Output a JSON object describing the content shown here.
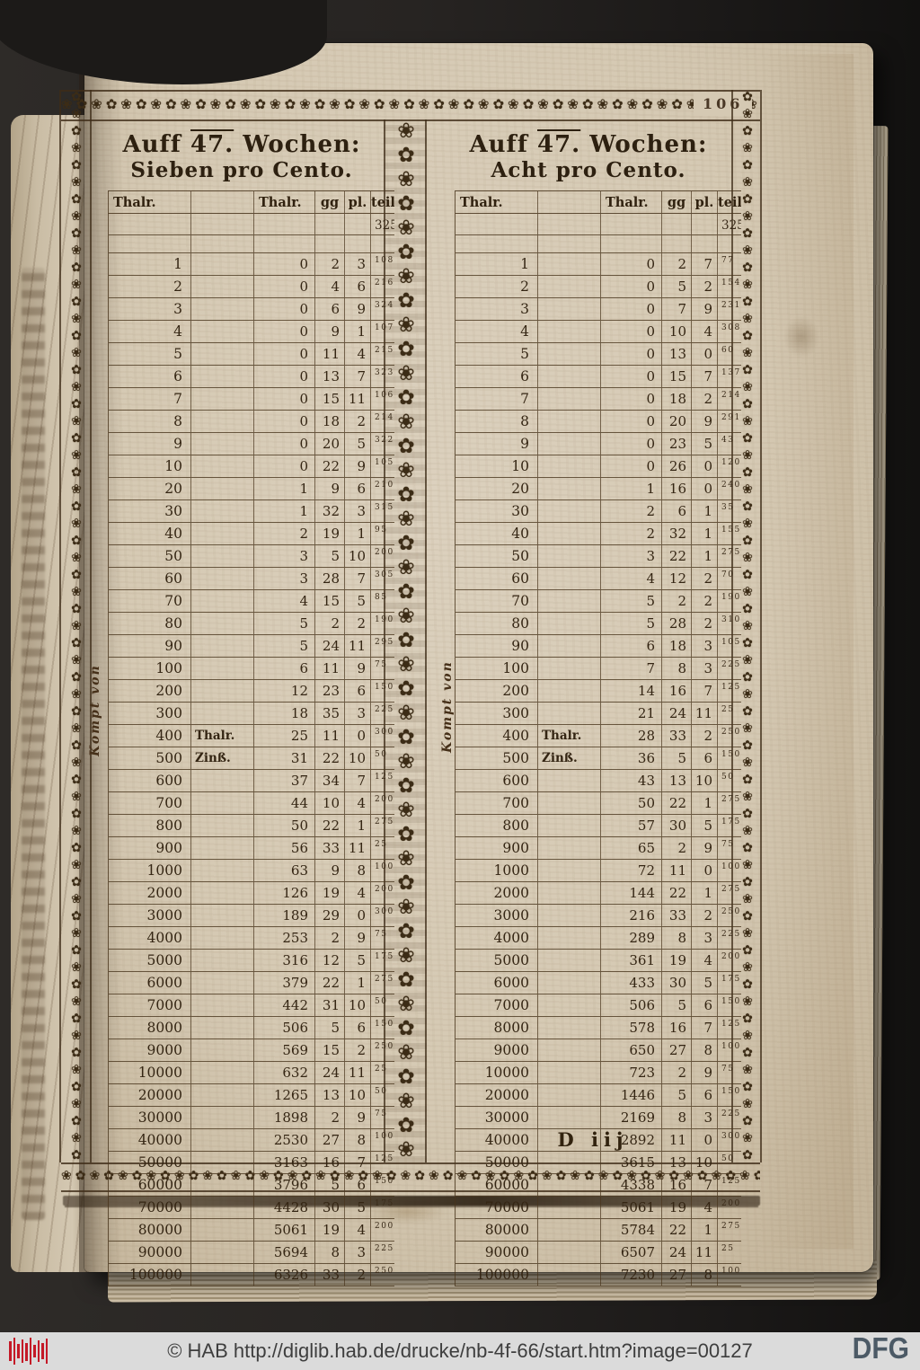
{
  "page": {
    "number": "106",
    "signature": "D iij",
    "kompt_von": "Kompt von"
  },
  "ornaments": {
    "flower_row": "❀✿",
    "flower_column": "✿❀",
    "flower_center": "❀✿"
  },
  "colors": {
    "parchment": "#d5c9b3",
    "ink": "#342513",
    "footer_bg": "#dbdbdb",
    "hab_red": "#c41927",
    "dfg_blue": "#4c5a66"
  },
  "footer": {
    "text": "© HAB http://diglib.hab.de/drucke/nb-4f-66/start.htm?image=00127",
    "dfg_label": "DFG"
  },
  "tables": [
    {
      "title": {
        "pre": "Auff",
        "num": "47.",
        "post": "Wochen:",
        "line2": "Sieben pro Cento."
      },
      "headers": [
        "Thalr.",
        "",
        "Thalr.",
        "gg",
        "pl.",
        "teil."
      ],
      "denominator": "325",
      "rows": [
        [
          "1",
          "",
          "0",
          "2",
          "3",
          "108"
        ],
        [
          "2",
          "",
          "0",
          "4",
          "6",
          "216"
        ],
        [
          "3",
          "",
          "0",
          "6",
          "9",
          "324"
        ],
        [
          "4",
          "",
          "0",
          "9",
          "1",
          "107"
        ],
        [
          "5",
          "",
          "0",
          "11",
          "4",
          "215"
        ],
        [
          "6",
          "",
          "0",
          "13",
          "7",
          "323"
        ],
        [
          "7",
          "",
          "0",
          "15",
          "11",
          "106"
        ],
        [
          "8",
          "",
          "0",
          "18",
          "2",
          "214"
        ],
        [
          "9",
          "",
          "0",
          "20",
          "5",
          "322"
        ],
        [
          "10",
          "",
          "0",
          "22",
          "9",
          "105"
        ],
        [
          "20",
          "",
          "1",
          "9",
          "6",
          "210"
        ],
        [
          "30",
          "",
          "1",
          "32",
          "3",
          "315"
        ],
        [
          "40",
          "",
          "2",
          "19",
          "1",
          "95"
        ],
        [
          "50",
          "",
          "3",
          "5",
          "10",
          "200"
        ],
        [
          "60",
          "",
          "3",
          "28",
          "7",
          "305"
        ],
        [
          "70",
          "",
          "4",
          "15",
          "5",
          "85"
        ],
        [
          "80",
          "",
          "5",
          "2",
          "2",
          "190"
        ],
        [
          "90",
          "",
          "5",
          "24",
          "11",
          "295"
        ],
        [
          "100",
          "",
          "6",
          "11",
          "9",
          "75"
        ],
        [
          "200",
          "",
          "12",
          "23",
          "6",
          "150"
        ],
        [
          "300",
          "",
          "18",
          "35",
          "3",
          "225"
        ],
        [
          "400",
          "Thalr.",
          "25",
          "11",
          "0",
          "300"
        ],
        [
          "500",
          "Zinß.",
          "31",
          "22",
          "10",
          "50"
        ],
        [
          "600",
          "",
          "37",
          "34",
          "7",
          "125"
        ],
        [
          "700",
          "",
          "44",
          "10",
          "4",
          "200"
        ],
        [
          "800",
          "",
          "50",
          "22",
          "1",
          "275"
        ],
        [
          "900",
          "",
          "56",
          "33",
          "11",
          "25"
        ],
        [
          "1000",
          "",
          "63",
          "9",
          "8",
          "100"
        ],
        [
          "2000",
          "",
          "126",
          "19",
          "4",
          "200"
        ],
        [
          "3000",
          "",
          "189",
          "29",
          "0",
          "300"
        ],
        [
          "4000",
          "",
          "253",
          "2",
          "9",
          "75"
        ],
        [
          "5000",
          "",
          "316",
          "12",
          "5",
          "175"
        ],
        [
          "6000",
          "",
          "379",
          "22",
          "1",
          "275"
        ],
        [
          "7000",
          "",
          "442",
          "31",
          "10",
          "50"
        ],
        [
          "8000",
          "",
          "506",
          "5",
          "6",
          "150"
        ],
        [
          "9000",
          "",
          "569",
          "15",
          "2",
          "250"
        ],
        [
          "10000",
          "",
          "632",
          "24",
          "11",
          "25"
        ],
        [
          "20000",
          "",
          "1265",
          "13",
          "10",
          "50"
        ],
        [
          "30000",
          "",
          "1898",
          "2",
          "9",
          "75"
        ],
        [
          "40000",
          "",
          "2530",
          "27",
          "8",
          "100"
        ],
        [
          "50000",
          "",
          "3163",
          "16",
          "7",
          "125"
        ],
        [
          "60000",
          "",
          "3796",
          "5",
          "6",
          "150"
        ],
        [
          "70000",
          "",
          "4428",
          "30",
          "5",
          "175"
        ],
        [
          "80000",
          "",
          "5061",
          "19",
          "4",
          "200"
        ],
        [
          "90000",
          "",
          "5694",
          "8",
          "3",
          "225"
        ],
        [
          "100000",
          "",
          "6326",
          "33",
          "2",
          "250"
        ]
      ]
    },
    {
      "title": {
        "pre": "Auff",
        "num": "47.",
        "post": "Wochen:",
        "line2": "Acht pro Cento."
      },
      "headers": [
        "Thalr.",
        "",
        "Thalr.",
        "gg",
        "pl.",
        "teil."
      ],
      "denominator": "325",
      "rows": [
        [
          "1",
          "",
          "0",
          "2",
          "7",
          "77"
        ],
        [
          "2",
          "",
          "0",
          "5",
          "2",
          "154"
        ],
        [
          "3",
          "",
          "0",
          "7",
          "9",
          "231"
        ],
        [
          "4",
          "",
          "0",
          "10",
          "4",
          "308"
        ],
        [
          "5",
          "",
          "0",
          "13",
          "0",
          "60"
        ],
        [
          "6",
          "",
          "0",
          "15",
          "7",
          "137"
        ],
        [
          "7",
          "",
          "0",
          "18",
          "2",
          "214"
        ],
        [
          "8",
          "",
          "0",
          "20",
          "9",
          "291"
        ],
        [
          "9",
          "",
          "0",
          "23",
          "5",
          "43"
        ],
        [
          "10",
          "",
          "0",
          "26",
          "0",
          "120"
        ],
        [
          "20",
          "",
          "1",
          "16",
          "0",
          "240"
        ],
        [
          "30",
          "",
          "2",
          "6",
          "1",
          "35"
        ],
        [
          "40",
          "",
          "2",
          "32",
          "1",
          "155"
        ],
        [
          "50",
          "",
          "3",
          "22",
          "1",
          "275"
        ],
        [
          "60",
          "",
          "4",
          "12",
          "2",
          "70"
        ],
        [
          "70",
          "",
          "5",
          "2",
          "2",
          "190"
        ],
        [
          "80",
          "",
          "5",
          "28",
          "2",
          "310"
        ],
        [
          "90",
          "",
          "6",
          "18",
          "3",
          "105"
        ],
        [
          "100",
          "",
          "7",
          "8",
          "3",
          "225"
        ],
        [
          "200",
          "",
          "14",
          "16",
          "7",
          "125"
        ],
        [
          "300",
          "",
          "21",
          "24",
          "11",
          "25"
        ],
        [
          "400",
          "Thalr.",
          "28",
          "33",
          "2",
          "250"
        ],
        [
          "500",
          "Zinß.",
          "36",
          "5",
          "6",
          "150"
        ],
        [
          "600",
          "",
          "43",
          "13",
          "10",
          "50"
        ],
        [
          "700",
          "",
          "50",
          "22",
          "1",
          "275"
        ],
        [
          "800",
          "",
          "57",
          "30",
          "5",
          "175"
        ],
        [
          "900",
          "",
          "65",
          "2",
          "9",
          "75"
        ],
        [
          "1000",
          "",
          "72",
          "11",
          "0",
          "100"
        ],
        [
          "2000",
          "",
          "144",
          "22",
          "1",
          "275"
        ],
        [
          "3000",
          "",
          "216",
          "33",
          "2",
          "250"
        ],
        [
          "4000",
          "",
          "289",
          "8",
          "3",
          "225"
        ],
        [
          "5000",
          "",
          "361",
          "19",
          "4",
          "200"
        ],
        [
          "6000",
          "",
          "433",
          "30",
          "5",
          "175"
        ],
        [
          "7000",
          "",
          "506",
          "5",
          "6",
          "150"
        ],
        [
          "8000",
          "",
          "578",
          "16",
          "7",
          "125"
        ],
        [
          "9000",
          "",
          "650",
          "27",
          "8",
          "100"
        ],
        [
          "10000",
          "",
          "723",
          "2",
          "9",
          "75"
        ],
        [
          "20000",
          "",
          "1446",
          "5",
          "6",
          "150"
        ],
        [
          "30000",
          "",
          "2169",
          "8",
          "3",
          "225"
        ],
        [
          "40000",
          "",
          "2892",
          "11",
          "0",
          "300"
        ],
        [
          "50000",
          "",
          "3615",
          "13",
          "10",
          "50"
        ],
        [
          "60000",
          "",
          "4338",
          "16",
          "7",
          "125"
        ],
        [
          "70000",
          "",
          "5061",
          "19",
          "4",
          "200"
        ],
        [
          "80000",
          "",
          "5784",
          "22",
          "1",
          "275"
        ],
        [
          "90000",
          "",
          "6507",
          "24",
          "11",
          "25"
        ],
        [
          "100000",
          "",
          "7230",
          "27",
          "8",
          "100"
        ]
      ]
    }
  ]
}
